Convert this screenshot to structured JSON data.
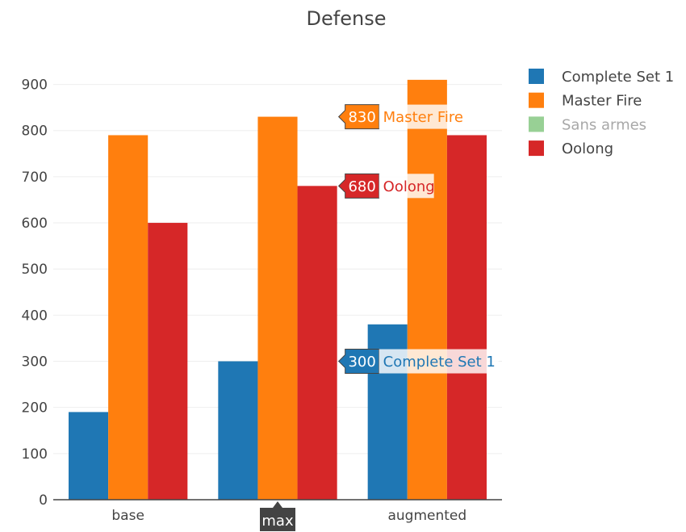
{
  "chart_data": {
    "type": "bar",
    "title": "Defense",
    "xlabel": "",
    "ylabel": "",
    "categories": [
      "base",
      "max",
      "augmented"
    ],
    "ylim": [
      0,
      950
    ],
    "yticks": [
      0,
      100,
      200,
      300,
      400,
      500,
      600,
      700,
      800,
      900
    ],
    "grid": true,
    "legend_position": "top-right",
    "series": [
      {
        "name": "Complete Set 1",
        "color": "#1f77b4",
        "visible": true,
        "values": [
          190,
          300,
          380
        ]
      },
      {
        "name": "Master Fire",
        "color": "#ff7f0e",
        "visible": true,
        "values": [
          790,
          830,
          910
        ]
      },
      {
        "name": "Sans armes",
        "color": "#98d095",
        "visible": false,
        "values": [
          null,
          null,
          null
        ]
      },
      {
        "name": "Oolong",
        "color": "#d62728",
        "visible": true,
        "values": [
          600,
          680,
          790
        ]
      }
    ],
    "hover": {
      "category": "max",
      "labels": [
        {
          "value": "830",
          "series": "Master Fire",
          "series_index": 1
        },
        {
          "value": "680",
          "series": "Oolong",
          "series_index": 3
        },
        {
          "value": "300",
          "series": "Complete Set 1",
          "series_index": 0
        }
      ]
    }
  }
}
